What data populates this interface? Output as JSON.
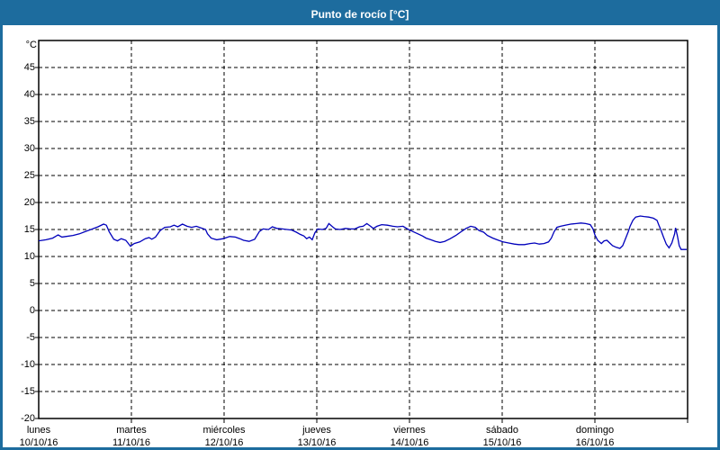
{
  "window": {
    "title": "Punto de rocío [°C]"
  },
  "colors": {
    "titlebar_bg": "#1d6c9e",
    "titlebar_text": "#ffffff",
    "panel_bg": "#ffffff",
    "frame": "#000000",
    "grid": "#000000",
    "series": "#0000bb",
    "text": "#000000"
  },
  "chart_data": {
    "type": "line",
    "title": "Punto de rocío [°C]",
    "unit_label": "°C",
    "ylim": [
      -20,
      50
    ],
    "ytick_step": 5,
    "yticks_labeled": [
      45,
      40,
      35,
      30,
      25,
      20,
      15,
      10,
      5,
      0,
      -5,
      -10,
      -15,
      -20
    ],
    "grid": "dashed",
    "legend": "none",
    "x_days": [
      {
        "name": "lunes",
        "date": "10/10/16"
      },
      {
        "name": "martes",
        "date": "11/10/16"
      },
      {
        "name": "miércoles",
        "date": "12/10/16"
      },
      {
        "name": "jueves",
        "date": "13/10/16"
      },
      {
        "name": "viernes",
        "date": "14/10/16"
      },
      {
        "name": "sábado",
        "date": "15/10/16"
      },
      {
        "name": "domingo",
        "date": "16/10/16"
      }
    ],
    "series": [
      {
        "name": "Punto de rocío",
        "color": "#0000bb",
        "points_unit": "[day_from_start_0_to_7, degC]",
        "points": [
          [
            0.0,
            12.9
          ],
          [
            0.08,
            13.1
          ],
          [
            0.15,
            13.4
          ],
          [
            0.21,
            14.0
          ],
          [
            0.25,
            13.6
          ],
          [
            0.29,
            13.7
          ],
          [
            0.37,
            13.9
          ],
          [
            0.44,
            14.2
          ],
          [
            0.5,
            14.6
          ],
          [
            0.58,
            15.1
          ],
          [
            0.64,
            15.5
          ],
          [
            0.7,
            16.0
          ],
          [
            0.73,
            15.8
          ],
          [
            0.76,
            14.6
          ],
          [
            0.81,
            13.2
          ],
          [
            0.85,
            12.9
          ],
          [
            0.89,
            13.3
          ],
          [
            0.94,
            13.0
          ],
          [
            0.99,
            11.9
          ],
          [
            1.03,
            12.4
          ],
          [
            1.09,
            12.7
          ],
          [
            1.15,
            13.3
          ],
          [
            1.19,
            13.5
          ],
          [
            1.22,
            13.2
          ],
          [
            1.26,
            13.6
          ],
          [
            1.31,
            14.8
          ],
          [
            1.36,
            15.4
          ],
          [
            1.42,
            15.5
          ],
          [
            1.46,
            15.8
          ],
          [
            1.5,
            15.5
          ],
          [
            1.55,
            16.0
          ],
          [
            1.6,
            15.6
          ],
          [
            1.65,
            15.4
          ],
          [
            1.7,
            15.6
          ],
          [
            1.75,
            15.3
          ],
          [
            1.8,
            15.0
          ],
          [
            1.82,
            14.2
          ],
          [
            1.86,
            13.4
          ],
          [
            1.92,
            13.1
          ],
          [
            1.99,
            13.3
          ],
          [
            2.06,
            13.7
          ],
          [
            2.12,
            13.6
          ],
          [
            2.17,
            13.3
          ],
          [
            2.21,
            13.0
          ],
          [
            2.27,
            12.8
          ],
          [
            2.33,
            13.2
          ],
          [
            2.38,
            14.6
          ],
          [
            2.42,
            15.1
          ],
          [
            2.48,
            15.0
          ],
          [
            2.52,
            15.5
          ],
          [
            2.57,
            15.2
          ],
          [
            2.63,
            15.1
          ],
          [
            2.68,
            15.0
          ],
          [
            2.73,
            14.9
          ],
          [
            2.78,
            14.5
          ],
          [
            2.82,
            14.1
          ],
          [
            2.86,
            13.8
          ],
          [
            2.89,
            13.3
          ],
          [
            2.92,
            13.6
          ],
          [
            2.95,
            13.1
          ],
          [
            2.98,
            14.4
          ],
          [
            3.01,
            15.1
          ],
          [
            3.06,
            15.0
          ],
          [
            3.1,
            15.2
          ],
          [
            3.13,
            16.1
          ],
          [
            3.17,
            15.5
          ],
          [
            3.2,
            15.1
          ],
          [
            3.25,
            15.0
          ],
          [
            3.31,
            15.2
          ],
          [
            3.36,
            15.1
          ],
          [
            3.41,
            15.1
          ],
          [
            3.46,
            15.5
          ],
          [
            3.5,
            15.6
          ],
          [
            3.54,
            16.1
          ],
          [
            3.58,
            15.6
          ],
          [
            3.61,
            15.2
          ],
          [
            3.65,
            15.6
          ],
          [
            3.7,
            15.9
          ],
          [
            3.76,
            15.8
          ],
          [
            3.82,
            15.6
          ],
          [
            3.87,
            15.5
          ],
          [
            3.93,
            15.6
          ],
          [
            3.98,
            15.1
          ],
          [
            4.04,
            14.6
          ],
          [
            4.09,
            14.2
          ],
          [
            4.14,
            13.8
          ],
          [
            4.18,
            13.4
          ],
          [
            4.23,
            13.1
          ],
          [
            4.28,
            12.8
          ],
          [
            4.33,
            12.6
          ],
          [
            4.38,
            12.8
          ],
          [
            4.44,
            13.3
          ],
          [
            4.5,
            13.9
          ],
          [
            4.55,
            14.5
          ],
          [
            4.61,
            15.2
          ],
          [
            4.66,
            15.6
          ],
          [
            4.71,
            15.4
          ],
          [
            4.75,
            14.8
          ],
          [
            4.8,
            14.5
          ],
          [
            4.84,
            13.9
          ],
          [
            4.9,
            13.4
          ],
          [
            4.96,
            13.0
          ],
          [
            5.01,
            12.7
          ],
          [
            5.07,
            12.5
          ],
          [
            5.13,
            12.3
          ],
          [
            5.18,
            12.2
          ],
          [
            5.24,
            12.2
          ],
          [
            5.3,
            12.4
          ],
          [
            5.35,
            12.5
          ],
          [
            5.4,
            12.3
          ],
          [
            5.45,
            12.4
          ],
          [
            5.5,
            12.7
          ],
          [
            5.53,
            13.4
          ],
          [
            5.56,
            14.6
          ],
          [
            5.59,
            15.4
          ],
          [
            5.63,
            15.6
          ],
          [
            5.68,
            15.8
          ],
          [
            5.74,
            16.0
          ],
          [
            5.8,
            16.1
          ],
          [
            5.85,
            16.2
          ],
          [
            5.9,
            16.1
          ],
          [
            5.95,
            15.9
          ],
          [
            5.98,
            15.1
          ],
          [
            6.0,
            14.0
          ],
          [
            6.03,
            13.0
          ],
          [
            6.07,
            12.4
          ],
          [
            6.1,
            12.9
          ],
          [
            6.13,
            13.0
          ],
          [
            6.16,
            12.5
          ],
          [
            6.19,
            12.0
          ],
          [
            6.23,
            11.7
          ],
          [
            6.27,
            11.5
          ],
          [
            6.3,
            12.0
          ],
          [
            6.33,
            13.3
          ],
          [
            6.36,
            14.6
          ],
          [
            6.38,
            15.6
          ],
          [
            6.41,
            16.7
          ],
          [
            6.44,
            17.3
          ],
          [
            6.49,
            17.5
          ],
          [
            6.53,
            17.4
          ],
          [
            6.58,
            17.3
          ],
          [
            6.63,
            17.1
          ],
          [
            6.67,
            16.7
          ],
          [
            6.69,
            15.8
          ],
          [
            6.71,
            15.0
          ],
          [
            6.74,
            13.6
          ],
          [
            6.77,
            12.3
          ],
          [
            6.8,
            11.6
          ],
          [
            6.83,
            12.5
          ],
          [
            6.86,
            14.2
          ],
          [
            6.87,
            15.3
          ],
          [
            6.89,
            13.8
          ],
          [
            6.91,
            12.0
          ],
          [
            6.93,
            11.3
          ],
          [
            6.96,
            11.3
          ],
          [
            6.99,
            11.3
          ]
        ]
      }
    ]
  }
}
